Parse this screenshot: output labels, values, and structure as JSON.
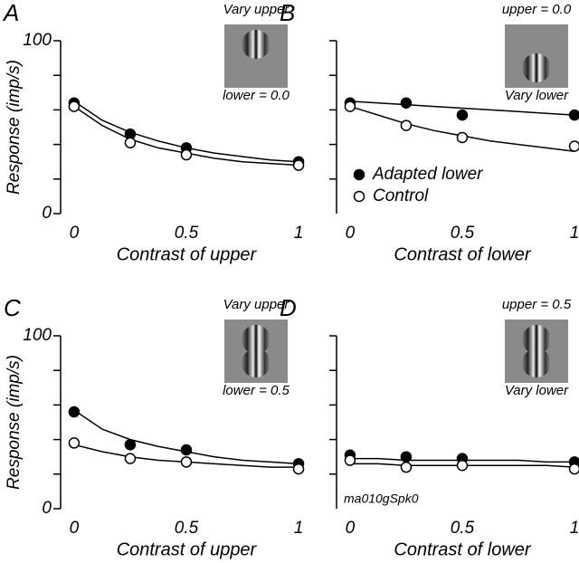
{
  "chart_data": [
    {
      "type": "scatter",
      "panel_label": "A",
      "xlabel": "Contrast of upper",
      "ylabel": "Response (imp/s)",
      "inset_top": "Vary upper",
      "inset_bottom": "lower = 0.0",
      "xlim": [
        -0.06,
        1.02
      ],
      "ylim": [
        0,
        100
      ],
      "xticks": [
        0,
        0.5,
        1
      ],
      "yticks": [
        0,
        100
      ],
      "minor_yticks": [
        20,
        40,
        60,
        80
      ],
      "x": [
        0,
        0.25,
        0.5,
        1
      ],
      "fit_x": [
        0,
        0.125,
        0.25,
        0.375,
        0.5,
        0.625,
        0.75,
        0.875,
        1
      ],
      "series": [
        {
          "color": "#000000",
          "marker": "filled",
          "values": [
            64,
            46,
            38,
            30
          ],
          "fit": [
            65,
            54,
            47,
            42,
            38,
            35,
            33,
            31,
            30
          ]
        },
        {
          "color": "#000000",
          "marker": "open",
          "values": [
            62,
            41,
            34,
            28
          ],
          "fit": [
            62,
            51,
            43,
            38,
            35,
            32,
            30,
            29,
            28
          ]
        }
      ]
    },
    {
      "type": "scatter",
      "panel_label": "B",
      "xlabel": "Contrast of lower",
      "inset_top": "upper = 0.0",
      "inset_bottom": "Vary lower",
      "xlim": [
        -0.06,
        1.02
      ],
      "ylim": [
        0,
        100
      ],
      "xticks": [
        0,
        0.5,
        1
      ],
      "minor_yticks": [
        20,
        40,
        60,
        80,
        100
      ],
      "x": [
        0,
        0.25,
        0.5,
        1
      ],
      "fit_x": [
        0,
        0.125,
        0.25,
        0.375,
        0.5,
        0.625,
        0.75,
        0.875,
        1
      ],
      "legend": true,
      "series": [
        {
          "name": "Adapted lower",
          "color": "#000000",
          "marker": "filled",
          "values": [
            64,
            64,
            57,
            57
          ],
          "fit": [
            65,
            64,
            63,
            62,
            61,
            60,
            59,
            58,
            57
          ]
        },
        {
          "name": "Control",
          "color": "#000000",
          "marker": "open",
          "values": [
            62,
            51,
            44,
            39
          ],
          "fit": [
            62,
            57,
            52,
            48,
            45,
            42,
            40,
            38,
            36
          ]
        }
      ]
    },
    {
      "type": "scatter",
      "panel_label": "C",
      "xlabel": "Contrast of upper",
      "ylabel": "Response (imp/s)",
      "inset_top": "Vary upper",
      "inset_bottom": "lower = 0.5",
      "xlim": [
        -0.06,
        1.02
      ],
      "ylim": [
        0,
        100
      ],
      "xticks": [
        0,
        0.5,
        1
      ],
      "yticks": [
        0,
        100
      ],
      "minor_yticks": [
        20,
        40,
        60,
        80
      ],
      "x": [
        0,
        0.25,
        0.5,
        1
      ],
      "fit_x": [
        0,
        0.125,
        0.25,
        0.375,
        0.5,
        0.625,
        0.75,
        0.875,
        1
      ],
      "series": [
        {
          "color": "#000000",
          "marker": "filled",
          "values": [
            56,
            37,
            34,
            26
          ],
          "fit": [
            57,
            46,
            40,
            36,
            33,
            30,
            28,
            27,
            26
          ]
        },
        {
          "color": "#000000",
          "marker": "open",
          "values": [
            38,
            29,
            27,
            23
          ],
          "fit": [
            37,
            33,
            30,
            28,
            27,
            26,
            25,
            24,
            24
          ]
        }
      ]
    },
    {
      "type": "scatter",
      "panel_label": "D",
      "xlabel": "Contrast of lower",
      "inset_top": "upper = 0.5",
      "inset_bottom": "Vary lower",
      "annotation": "ma010gSpk0",
      "xlim": [
        -0.06,
        1.02
      ],
      "ylim": [
        0,
        100
      ],
      "xticks": [
        0,
        0.5,
        1
      ],
      "minor_yticks": [
        20,
        40,
        60,
        80,
        100
      ],
      "x": [
        0,
        0.25,
        0.5,
        1
      ],
      "fit_x": [
        0,
        0.125,
        0.25,
        0.375,
        0.5,
        0.625,
        0.75,
        0.875,
        1
      ],
      "series": [
        {
          "color": "#000000",
          "marker": "filled",
          "values": [
            31,
            30,
            29,
            27
          ],
          "fit": [
            29,
            29,
            28,
            28,
            28,
            28,
            28,
            27,
            27
          ]
        },
        {
          "color": "#000000",
          "marker": "open",
          "values": [
            28,
            24,
            25,
            23
          ],
          "fit": [
            26,
            26,
            25,
            25,
            25,
            25,
            25,
            25,
            24
          ]
        }
      ]
    }
  ]
}
